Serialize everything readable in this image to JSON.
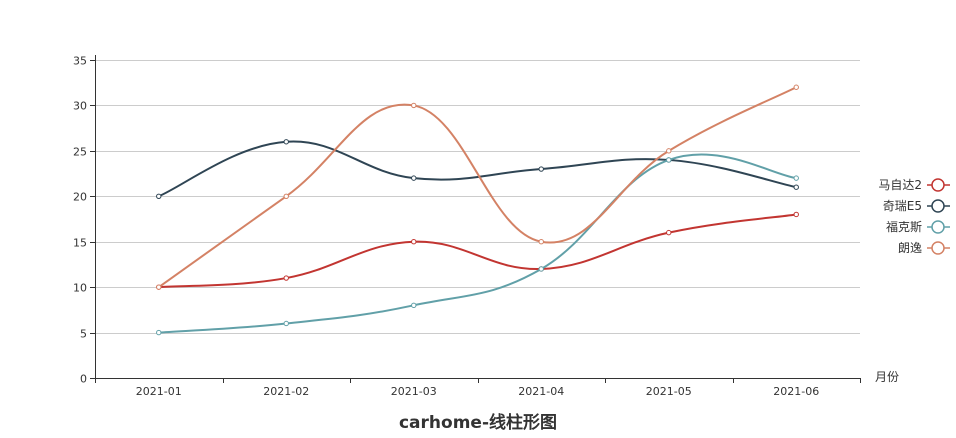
{
  "chart_data": {
    "type": "line",
    "title": "carhome-线柱形图",
    "xlabel": "月份",
    "ylabel": "",
    "categories": [
      "2021-01",
      "2021-02",
      "2021-03",
      "2021-04",
      "2021-05",
      "2021-06"
    ],
    "ylim": [
      0,
      35
    ],
    "yticks": [
      0,
      5,
      10,
      15,
      20,
      25,
      30,
      35
    ],
    "smooth": true,
    "grid": true,
    "legend": "right",
    "series": [
      {
        "name": "马自达2",
        "color": "#c23531",
        "values": [
          10,
          11,
          15,
          12,
          16,
          18
        ]
      },
      {
        "name": "奇瑞E5",
        "color": "#2f4554",
        "values": [
          20,
          26,
          22,
          23,
          24,
          21
        ]
      },
      {
        "name": "福克斯",
        "color": "#61a0a8",
        "values": [
          5,
          6,
          8,
          12,
          24,
          22
        ]
      },
      {
        "name": "朗逸",
        "color": "#d48265",
        "values": [
          10,
          20,
          30,
          15,
          25,
          32
        ]
      }
    ]
  }
}
